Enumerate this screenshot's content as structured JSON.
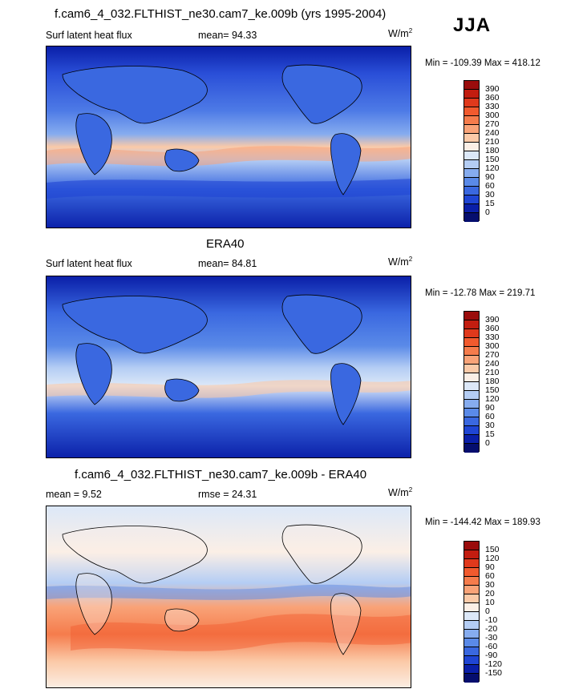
{
  "season": "JJA",
  "panel1": {
    "title": "f.cam6_4_032.FLTHIST_ne30.cam7_ke.009b (yrs 1995-2004)",
    "left": "Surf latent heat flux",
    "center": "mean=  94.33",
    "units": "W/m",
    "units_sup": "2",
    "minmax": "Min = -109.39 Max = 418.12"
  },
  "panel2": {
    "title": "ERA40",
    "left": "Surf latent heat flux",
    "center": "mean=  84.81",
    "units": "W/m",
    "units_sup": "2",
    "minmax": "Min = -12.78 Max = 219.71"
  },
  "panel3": {
    "title": "f.cam6_4_032.FLTHIST_ne30.cam7_ke.009b - ERA40",
    "left": "mean =   9.52",
    "center": "rmse =  24.31",
    "units": "W/m",
    "units_sup": "2",
    "minmax": "Min = -144.42 Max = 189.93"
  },
  "colorbar_abs": {
    "labels": [
      "390",
      "360",
      "330",
      "300",
      "270",
      "240",
      "210",
      "180",
      "150",
      "120",
      "90",
      "60",
      "30",
      "15",
      "0"
    ],
    "colors": [
      "#9a0c0c",
      "#c21d10",
      "#e0391c",
      "#f15a2e",
      "#f57c4c",
      "#f9a378",
      "#fbcaa8",
      "#fbefe6",
      "#dce8f8",
      "#b4cdf4",
      "#86acef",
      "#5a8ae8",
      "#3a68e0",
      "#1f45d4",
      "#0a1fa8",
      "#050e6e"
    ]
  },
  "colorbar_diff": {
    "labels": [
      "150",
      "120",
      "90",
      "60",
      "30",
      "20",
      "10",
      "0",
      "-10",
      "-20",
      "-30",
      "-60",
      "-90",
      "-120",
      "-150"
    ],
    "colors": [
      "#9a0c0c",
      "#c21d10",
      "#e0391c",
      "#f15a2e",
      "#f57c4c",
      "#f9a378",
      "#fbcaa8",
      "#fbefe6",
      "#dce8f8",
      "#b4cdf4",
      "#86acef",
      "#5a8ae8",
      "#3a68e0",
      "#1f45d4",
      "#0a1fa8",
      "#050e6e"
    ]
  }
}
